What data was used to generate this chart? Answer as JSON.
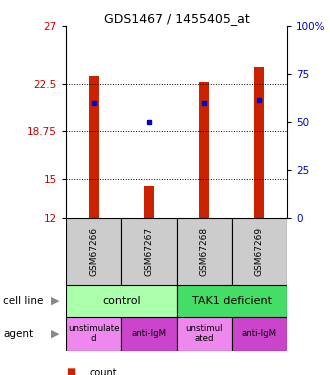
{
  "title": "GDS1467 / 1455405_at",
  "samples": [
    "GSM67266",
    "GSM67267",
    "GSM67268",
    "GSM67269"
  ],
  "bar_bottoms": [
    12,
    12,
    12,
    12
  ],
  "bar_tops": [
    23.1,
    14.5,
    22.6,
    23.8
  ],
  "percentile_values": [
    21.0,
    19.5,
    21.0,
    21.2
  ],
  "ylim_left": [
    12,
    27
  ],
  "ylim_right": [
    0,
    100
  ],
  "yticks_left": [
    12,
    15,
    18.75,
    22.5,
    27
  ],
  "yticks_right": [
    0,
    25,
    50,
    75,
    100
  ],
  "ytick_labels_left": [
    "12",
    "15",
    "18.75",
    "22.5",
    "27"
  ],
  "ytick_labels_right": [
    "0",
    "25",
    "50",
    "75",
    "100%"
  ],
  "dotted_lines": [
    22.5,
    18.75,
    15
  ],
  "bar_color": "#cc2200",
  "dot_color": "#0000cc",
  "cell_line_labels": [
    "control",
    "TAK1 deficient"
  ],
  "cell_line_spans": [
    [
      0,
      2
    ],
    [
      2,
      4
    ]
  ],
  "cell_line_colors": [
    "#aaffaa",
    "#44dd66"
  ],
  "agent_labels": [
    "unstimulate\nd",
    "anti-IgM",
    "unstimul\nated",
    "anti-IgM"
  ],
  "agent_colors_bg": [
    "#ee88ee",
    "#cc44cc",
    "#ee88ee",
    "#cc44cc"
  ],
  "bar_width": 0.18,
  "tick_label_color_left": "#cc0000",
  "tick_label_color_right": "#0000cc",
  "sample_box_color": "#cccccc"
}
